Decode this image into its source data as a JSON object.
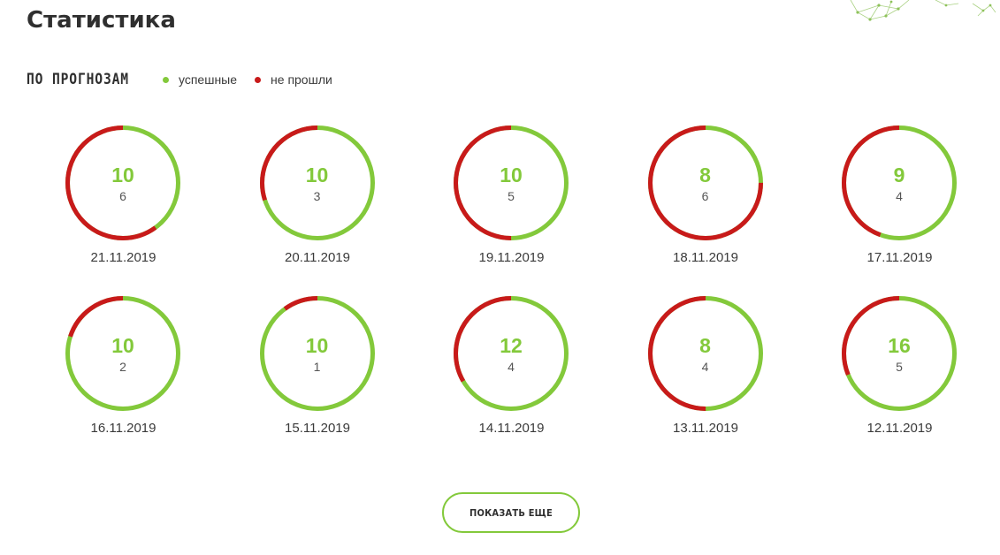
{
  "page": {
    "title": "Статистика"
  },
  "legend": {
    "title": "ПО ПРОГНОЗАМ",
    "items": [
      {
        "label": "успешные",
        "color": "#83c93b"
      },
      {
        "label": "не прошли",
        "color": "#c81a1a"
      }
    ]
  },
  "colors": {
    "success": "#83c93b",
    "fail": "#c81a1a"
  },
  "chart_data": {
    "type": "pie",
    "series": [
      {
        "name": "успешные",
        "color": "#83c93b"
      },
      {
        "name": "не прошли",
        "color": "#c81a1a"
      }
    ],
    "items": [
      {
        "date": "21.11.2019",
        "total": "10",
        "failed": "6"
      },
      {
        "date": "20.11.2019",
        "total": "10",
        "failed": "3"
      },
      {
        "date": "19.11.2019",
        "total": "10",
        "failed": "5"
      },
      {
        "date": "18.11.2019",
        "total": "8",
        "failed": "6"
      },
      {
        "date": "17.11.2019",
        "total": "9",
        "failed": "4"
      },
      {
        "date": "16.11.2019",
        "total": "10",
        "failed": "2"
      },
      {
        "date": "15.11.2019",
        "total": "10",
        "failed": "1"
      },
      {
        "date": "14.11.2019",
        "total": "12",
        "failed": "4"
      },
      {
        "date": "13.11.2019",
        "total": "8",
        "failed": "4"
      },
      {
        "date": "12.11.2019",
        "total": "16",
        "failed": "5"
      }
    ]
  },
  "more_button": {
    "label": "ПОКАЗАТЬ ЕЩЕ"
  }
}
